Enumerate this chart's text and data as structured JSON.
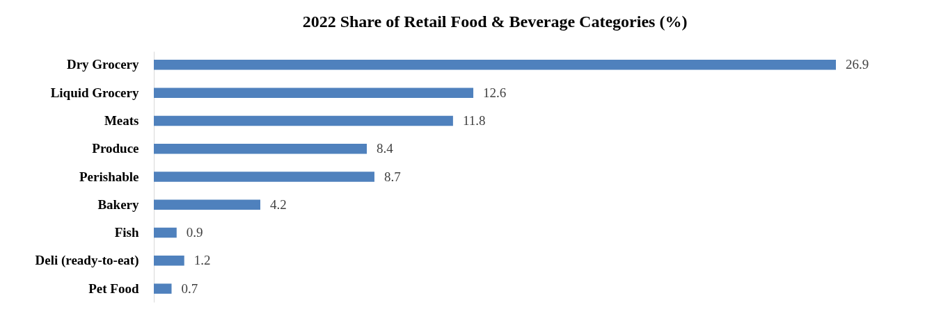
{
  "chart_data": {
    "type": "bar",
    "orientation": "horizontal",
    "title": "2022 Share of Retail Food & Beverage Categories (%)",
    "categories": [
      "Dry Grocery",
      "Liquid Grocery",
      "Meats",
      "Produce",
      "Perishable",
      "Bakery",
      "Fish",
      "Deli (ready-to-eat)",
      "Pet Food"
    ],
    "values": [
      26.9,
      12.6,
      11.8,
      8.4,
      8.7,
      4.2,
      0.9,
      1.2,
      0.7
    ],
    "color": "#4f81bd",
    "data_labels": true,
    "grid": false,
    "tick_labels": "y"
  }
}
